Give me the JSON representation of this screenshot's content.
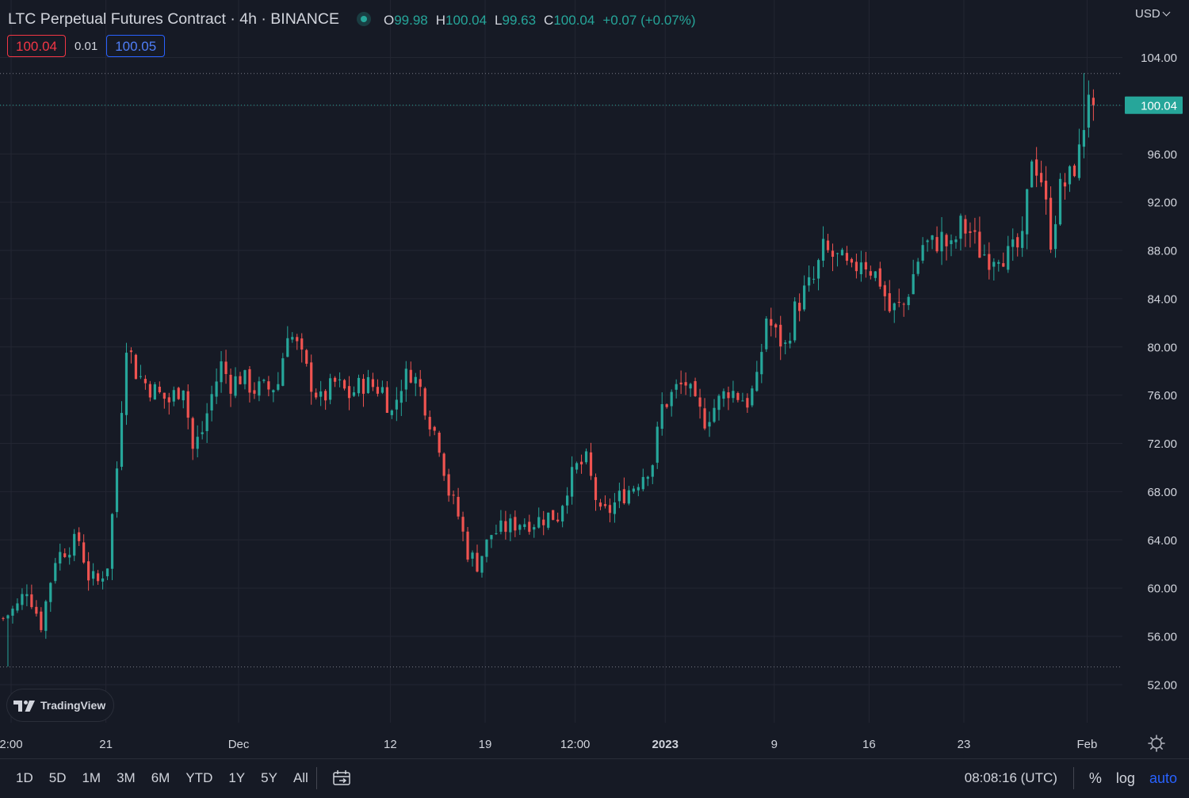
{
  "header": {
    "symbol": "LTC Perpetual Futures Contract · 4h · BINANCE",
    "ohlc": {
      "o_label": "O",
      "o_value": "99.98",
      "h_label": "H",
      "h_value": "100.04",
      "l_label": "L",
      "l_value": "99.63",
      "c_label": "C",
      "c_value": "100.04",
      "change": "+0.07 (+0.07%)"
    },
    "sell_price": "100.04",
    "spread": "0.01",
    "buy_price": "100.05"
  },
  "currency": "USD",
  "watermark": "TradingView",
  "colors": {
    "background": "#161a25",
    "up": "#26a69a",
    "down": "#ef5350",
    "grid": "#232632",
    "accent": "#2962ff"
  },
  "chart_data": {
    "type": "candlestick",
    "interval": "4h",
    "ylim": [
      50,
      106
    ],
    "y_ticks": [
      "104.00",
      "100.00",
      "96.00",
      "92.00",
      "88.00",
      "84.00",
      "80.00",
      "76.00",
      "72.00",
      "68.00",
      "64.00",
      "60.00",
      "56.00",
      "52.00"
    ],
    "x_ticks": [
      {
        "label": "2:00",
        "bar": 0,
        "bold": false
      },
      {
        "label": "21",
        "bar": 20,
        "bold": false
      },
      {
        "label": "Dec",
        "bar": 48,
        "bold": false
      },
      {
        "label": "12",
        "bar": 80,
        "bold": false
      },
      {
        "label": "19",
        "bar": 100,
        "bold": false
      },
      {
        "label": "12:00",
        "bar": 119,
        "bold": false
      },
      {
        "label": "2023",
        "bar": 138,
        "bold": true
      },
      {
        "label": "9",
        "bar": 161,
        "bold": false
      },
      {
        "label": "16",
        "bar": 181,
        "bold": false
      },
      {
        "label": "23",
        "bar": 201,
        "bold": false
      },
      {
        "label": "Feb",
        "bar": 227,
        "bold": false
      }
    ],
    "visible_high": 102.7,
    "visible_low": 53.5,
    "last_price": "100.04",
    "close_path": [
      [
        0,
        57.5
      ],
      [
        3,
        58.5
      ],
      [
        5,
        60.0
      ],
      [
        8,
        57.0
      ],
      [
        11,
        62.5
      ],
      [
        14,
        63.5
      ],
      [
        16,
        64.0
      ],
      [
        18,
        61.0
      ],
      [
        20,
        60.5
      ],
      [
        22,
        62.0
      ],
      [
        24,
        70.0
      ],
      [
        26,
        80.5
      ],
      [
        28,
        78.0
      ],
      [
        30,
        77.0
      ],
      [
        33,
        76.0
      ],
      [
        35,
        75.5
      ],
      [
        38,
        77.0
      ],
      [
        40,
        71.5
      ],
      [
        42,
        73.0
      ],
      [
        44,
        76.0
      ],
      [
        46,
        78.5
      ],
      [
        48,
        77.0
      ],
      [
        50,
        77.5
      ],
      [
        53,
        76.5
      ],
      [
        56,
        76.5
      ],
      [
        58,
        77.0
      ],
      [
        60,
        81.5
      ],
      [
        62,
        80.0
      ],
      [
        65,
        77.0
      ],
      [
        67,
        75.5
      ],
      [
        70,
        77.0
      ],
      [
        73,
        76.0
      ],
      [
        76,
        77.0
      ],
      [
        80,
        76.5
      ],
      [
        82,
        74.5
      ],
      [
        84,
        77.0
      ],
      [
        86,
        78.0
      ],
      [
        88,
        76.5
      ],
      [
        90,
        74.0
      ],
      [
        92,
        72.0
      ],
      [
        94,
        68.0
      ],
      [
        96,
        66.0
      ],
      [
        98,
        63.0
      ],
      [
        100,
        62.0
      ],
      [
        103,
        64.5
      ],
      [
        106,
        65.0
      ],
      [
        109,
        65.5
      ],
      [
        112,
        65.5
      ],
      [
        115,
        66.0
      ],
      [
        117,
        66.0
      ],
      [
        119,
        68.5
      ],
      [
        121,
        70.0
      ],
      [
        123,
        70.5
      ],
      [
        126,
        66.0
      ],
      [
        128,
        66.5
      ],
      [
        130,
        67.5
      ],
      [
        133,
        68.5
      ],
      [
        135,
        69.5
      ],
      [
        137,
        70.5
      ],
      [
        139,
        75.0
      ],
      [
        142,
        76.5
      ],
      [
        144,
        77.0
      ],
      [
        146,
        75.0
      ],
      [
        148,
        74.0
      ],
      [
        150,
        75.0
      ],
      [
        153,
        76.5
      ],
      [
        155,
        76.0
      ],
      [
        157,
        75.5
      ],
      [
        159,
        77.0
      ],
      [
        161,
        82.5
      ],
      [
        163,
        81.0
      ],
      [
        165,
        80.0
      ],
      [
        167,
        83.0
      ],
      [
        169,
        84.5
      ],
      [
        171,
        85.5
      ],
      [
        173,
        88.0
      ],
      [
        175,
        87.5
      ],
      [
        177,
        87.0
      ],
      [
        179,
        86.0
      ],
      [
        181,
        87.5
      ],
      [
        183,
        86.5
      ],
      [
        185,
        85.5
      ],
      [
        187,
        83.0
      ],
      [
        190,
        83.5
      ],
      [
        192,
        86.0
      ],
      [
        194,
        88.5
      ],
      [
        196,
        88.5
      ],
      [
        198,
        89.0
      ],
      [
        200,
        88.0
      ],
      [
        202,
        90.0
      ],
      [
        204,
        89.5
      ],
      [
        206,
        88.0
      ],
      [
        208,
        87.5
      ],
      [
        210,
        88.0
      ],
      [
        212,
        87.5
      ],
      [
        215,
        88.5
      ],
      [
        217,
        96.0
      ],
      [
        219,
        94.0
      ],
      [
        221,
        89.0
      ],
      [
        223,
        93.0
      ],
      [
        225,
        94.0
      ],
      [
        227,
        96.0
      ],
      [
        228,
        98.5
      ],
      [
        229,
        101.5
      ],
      [
        230,
        100.04
      ]
    ]
  },
  "time_ranges": [
    "1D",
    "5D",
    "1M",
    "3M",
    "6M",
    "YTD",
    "1Y",
    "5Y",
    "All"
  ],
  "clock": "08:08:16 (UTC)",
  "tools": {
    "percent": "%",
    "log": "log",
    "auto": "auto"
  }
}
